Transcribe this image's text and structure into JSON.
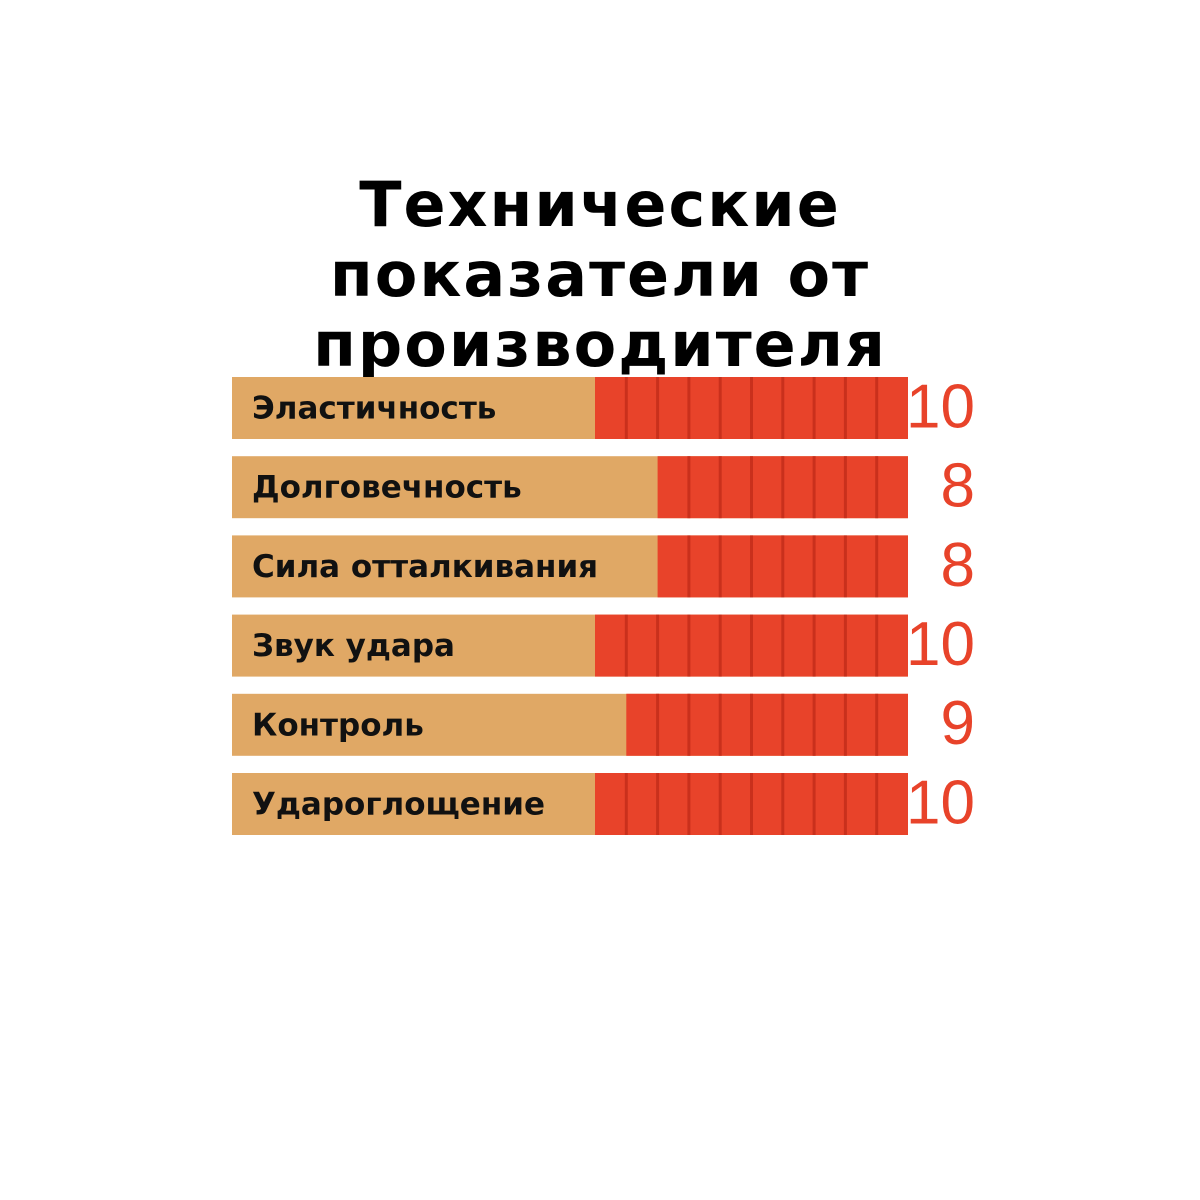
{
  "chart_data": {
    "type": "bar",
    "orientation": "horizontal",
    "title": "Технические показатели от производителя",
    "categories": [
      "Эластичность",
      "Долговечность",
      "Сила отталкивания",
      "Звук удара",
      "Контроль",
      "Удароглощение"
    ],
    "values": [
      10,
      8,
      8,
      10,
      9,
      10
    ],
    "xlim": [
      0,
      10
    ],
    "color": "#e8432a",
    "track_color": "#e0a865",
    "label_color": "#e8432a"
  }
}
